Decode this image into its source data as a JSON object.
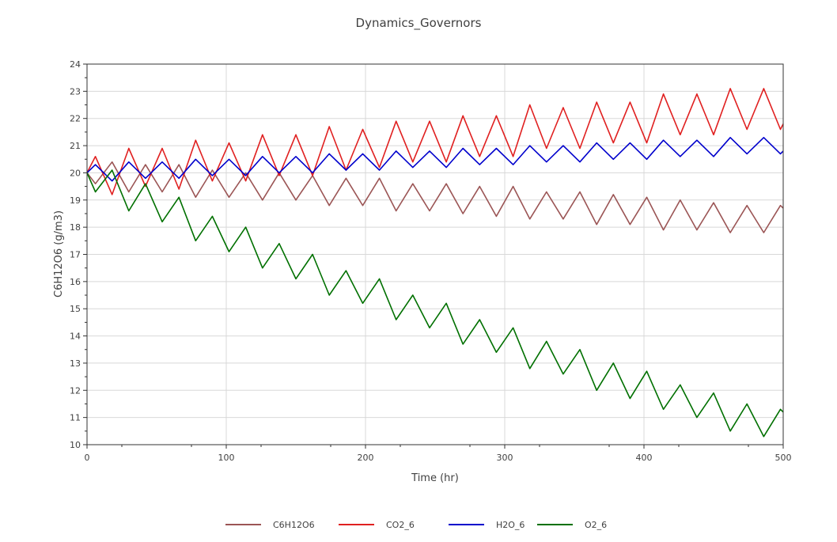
{
  "chart_data": {
    "type": "line",
    "title": "Dynamics_Governors",
    "xlabel": "Time (hr)",
    "ylabel": "C6H12O6 (g/m3)",
    "xlim": [
      0,
      500
    ],
    "ylim": [
      10,
      24
    ],
    "x_ticks": [
      "0",
      "100",
      "200",
      "300",
      "400",
      "500"
    ],
    "y_ticks": [
      "10",
      "11",
      "12",
      "13",
      "14",
      "15",
      "16",
      "17",
      "18",
      "19",
      "20",
      "21",
      "22",
      "23",
      "24"
    ],
    "grid": true,
    "legend_position": "bottom",
    "series": [
      {
        "name": "C6H12O6",
        "color": "#9b5555",
        "x": [
          0,
          6,
          18,
          30,
          42,
          54,
          66,
          78,
          90,
          102,
          114,
          126,
          138,
          150,
          162,
          174,
          186,
          198,
          210,
          222,
          234,
          246,
          258,
          270,
          282,
          294,
          306,
          318,
          330,
          342,
          354,
          366,
          378,
          390,
          402,
          414,
          426,
          438,
          450,
          462,
          474,
          486,
          498,
          500
        ],
        "values": [
          20.0,
          19.6,
          20.4,
          19.3,
          20.3,
          19.3,
          20.3,
          19.1,
          20.1,
          19.1,
          20.0,
          19.0,
          20.0,
          19.0,
          19.9,
          18.8,
          19.8,
          18.8,
          19.8,
          18.6,
          19.6,
          18.6,
          19.6,
          18.5,
          19.5,
          18.4,
          19.5,
          18.3,
          19.3,
          18.3,
          19.3,
          18.1,
          19.2,
          18.1,
          19.1,
          17.9,
          19.0,
          17.9,
          18.9,
          17.8,
          18.8,
          17.8,
          18.8,
          18.7
        ]
      },
      {
        "name": "CO2_6",
        "color": "#e02020",
        "x": [
          0,
          6,
          18,
          30,
          42,
          54,
          66,
          78,
          90,
          102,
          114,
          126,
          138,
          150,
          162,
          174,
          186,
          198,
          210,
          222,
          234,
          246,
          258,
          270,
          282,
          294,
          306,
          318,
          330,
          342,
          354,
          366,
          378,
          390,
          402,
          414,
          426,
          438,
          450,
          462,
          474,
          486,
          498,
          500
        ],
        "values": [
          20.0,
          20.6,
          19.2,
          20.9,
          19.5,
          20.9,
          19.4,
          21.2,
          19.7,
          21.1,
          19.7,
          21.4,
          19.9,
          21.4,
          19.9,
          21.7,
          20.1,
          21.6,
          20.2,
          21.9,
          20.4,
          21.9,
          20.4,
          22.1,
          20.6,
          22.1,
          20.6,
          22.5,
          20.9,
          22.4,
          20.9,
          22.6,
          21.1,
          22.6,
          21.1,
          22.9,
          21.4,
          22.9,
          21.4,
          23.1,
          21.6,
          23.1,
          21.6,
          21.8
        ]
      },
      {
        "name": "H2O_6",
        "color": "#0000cc",
        "x": [
          0,
          6,
          18,
          30,
          42,
          54,
          66,
          78,
          90,
          102,
          114,
          126,
          138,
          150,
          162,
          174,
          186,
          198,
          210,
          222,
          234,
          246,
          258,
          270,
          282,
          294,
          306,
          318,
          330,
          342,
          354,
          366,
          378,
          390,
          402,
          414,
          426,
          438,
          450,
          462,
          474,
          486,
          498,
          500
        ],
        "values": [
          20.0,
          20.3,
          19.7,
          20.4,
          19.8,
          20.4,
          19.8,
          20.5,
          19.9,
          20.5,
          19.9,
          20.6,
          20.0,
          20.6,
          20.0,
          20.7,
          20.1,
          20.7,
          20.1,
          20.8,
          20.2,
          20.8,
          20.2,
          20.9,
          20.3,
          20.9,
          20.3,
          21.0,
          20.4,
          21.0,
          20.4,
          21.1,
          20.5,
          21.1,
          20.5,
          21.2,
          20.6,
          21.2,
          20.6,
          21.3,
          20.7,
          21.3,
          20.7,
          20.8
        ]
      },
      {
        "name": "O2_6",
        "color": "#007000",
        "x": [
          0,
          6,
          18,
          30,
          42,
          54,
          66,
          78,
          90,
          102,
          114,
          126,
          138,
          150,
          162,
          174,
          186,
          198,
          210,
          222,
          234,
          246,
          258,
          270,
          282,
          294,
          306,
          318,
          330,
          342,
          354,
          366,
          378,
          390,
          402,
          414,
          426,
          438,
          450,
          462,
          474,
          486,
          498,
          500
        ],
        "values": [
          20.0,
          19.3,
          20.1,
          18.6,
          19.6,
          18.2,
          19.1,
          17.5,
          18.4,
          17.1,
          18.0,
          16.5,
          17.4,
          16.1,
          17.0,
          15.5,
          16.4,
          15.2,
          16.1,
          14.6,
          15.5,
          14.3,
          15.2,
          13.7,
          14.6,
          13.4,
          14.3,
          12.8,
          13.8,
          12.6,
          13.5,
          12.0,
          13.0,
          11.7,
          12.7,
          11.3,
          12.2,
          11.0,
          11.9,
          10.5,
          11.5,
          10.3,
          11.3,
          11.2
        ]
      }
    ]
  }
}
